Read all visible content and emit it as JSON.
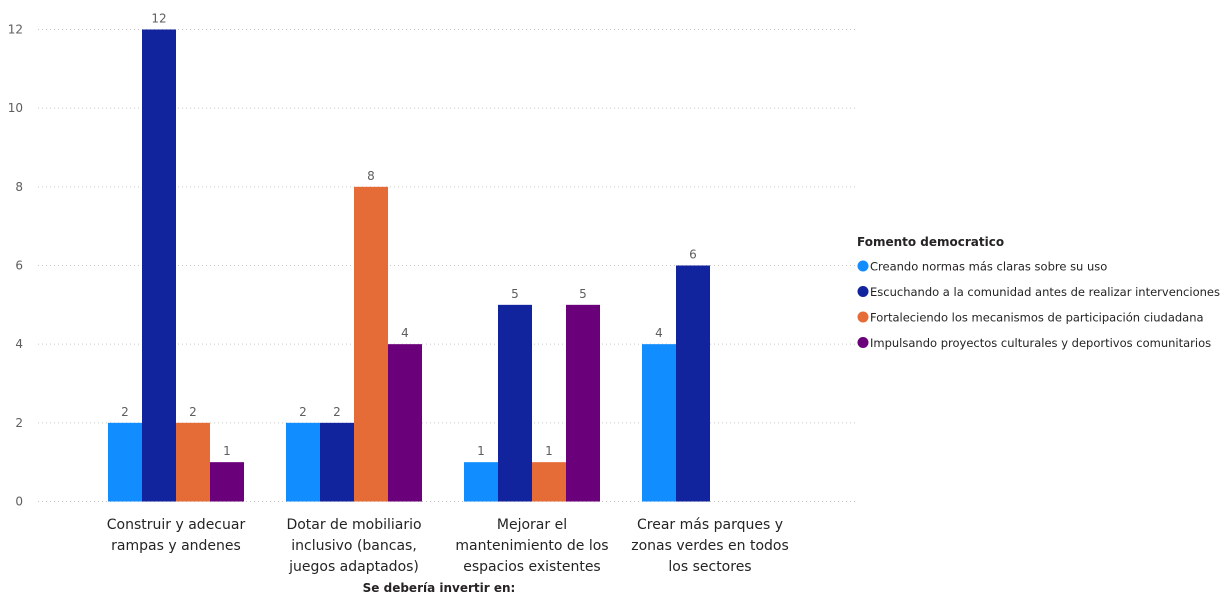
{
  "chart_data": {
    "type": "bar",
    "title": "",
    "xlabel": "Se debería invertir en:",
    "ylabel": "",
    "ylim": [
      0,
      12
    ],
    "yticks": [
      0,
      2,
      4,
      6,
      8,
      10,
      12
    ],
    "grid": true,
    "legend_position": "right",
    "legend_title": "Fomento democratico",
    "categories": [
      [
        "Construir y adecuar",
        "rampas y andenes"
      ],
      [
        "Dotar de mobiliario",
        "inclusivo (bancas,",
        "juegos adaptados)"
      ],
      [
        "Mejorar el",
        "mantenimiento de los",
        "espacios existentes"
      ],
      [
        "Crear más parques y",
        "zonas verdes en todos",
        "los sectores"
      ]
    ],
    "series": [
      {
        "name": "Creando normas más claras sobre su uso",
        "color": "#118DFF",
        "values": [
          2,
          2,
          1,
          4
        ]
      },
      {
        "name": "Escuchando a la comunidad antes de realizar intervenciones",
        "color": "#12239E",
        "values": [
          12,
          2,
          5,
          6
        ]
      },
      {
        "name": "Fortaleciendo los mecanismos de participación ciudadana",
        "color": "#E66C37",
        "values": [
          2,
          8,
          1,
          null
        ]
      },
      {
        "name": "Impulsando proyectos culturales y deportivos comunitarios",
        "color": "#6B007B",
        "values": [
          1,
          4,
          5,
          null
        ]
      }
    ]
  }
}
